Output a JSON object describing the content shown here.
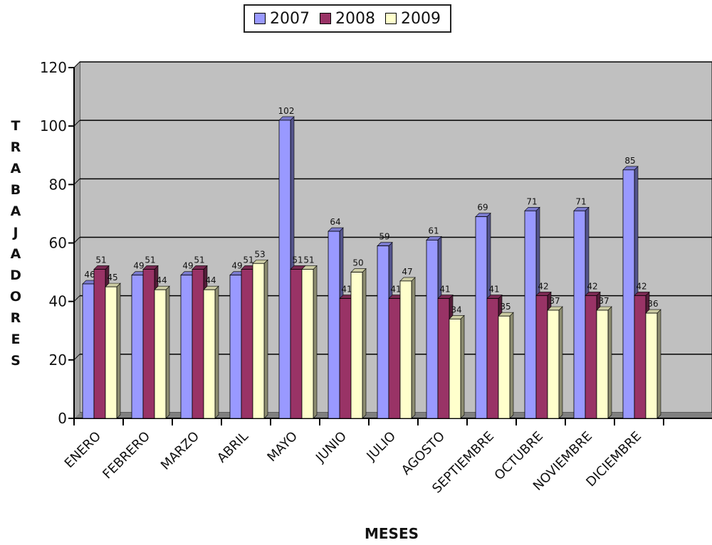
{
  "chart_data": {
    "type": "bar",
    "title": "",
    "xlabel": "MESES",
    "ylabel": "TRABAJADORES",
    "ylim": [
      0,
      120
    ],
    "yticks": [
      0,
      20,
      40,
      60,
      80,
      100,
      120
    ],
    "grid": true,
    "legend_position": "top",
    "categories": [
      "ENERO",
      "FEBRERO",
      "MARZO",
      "ABRIL",
      "MAYO",
      "JUNIO",
      "JULIO",
      "AGOSTO",
      "SEPTIEMBRE",
      "OCTUBRE",
      "NOVIEMBRE",
      "DICIEMBRE"
    ],
    "series": [
      {
        "name": "2007",
        "color": "#9999ff",
        "values": [
          46,
          49,
          49,
          49,
          102,
          64,
          59,
          61,
          69,
          71,
          71,
          85
        ]
      },
      {
        "name": "2008",
        "color": "#993366",
        "values": [
          51,
          51,
          51,
          51,
          51,
          41,
          41,
          41,
          41,
          42,
          42,
          42
        ]
      },
      {
        "name": "2009",
        "color": "#ffffcc",
        "values": [
          45,
          44,
          44,
          53,
          51,
          50,
          47,
          34,
          35,
          37,
          37,
          36
        ]
      }
    ]
  },
  "colors": {
    "plot_background": "#c0c0c0",
    "gridline": "#000000"
  }
}
